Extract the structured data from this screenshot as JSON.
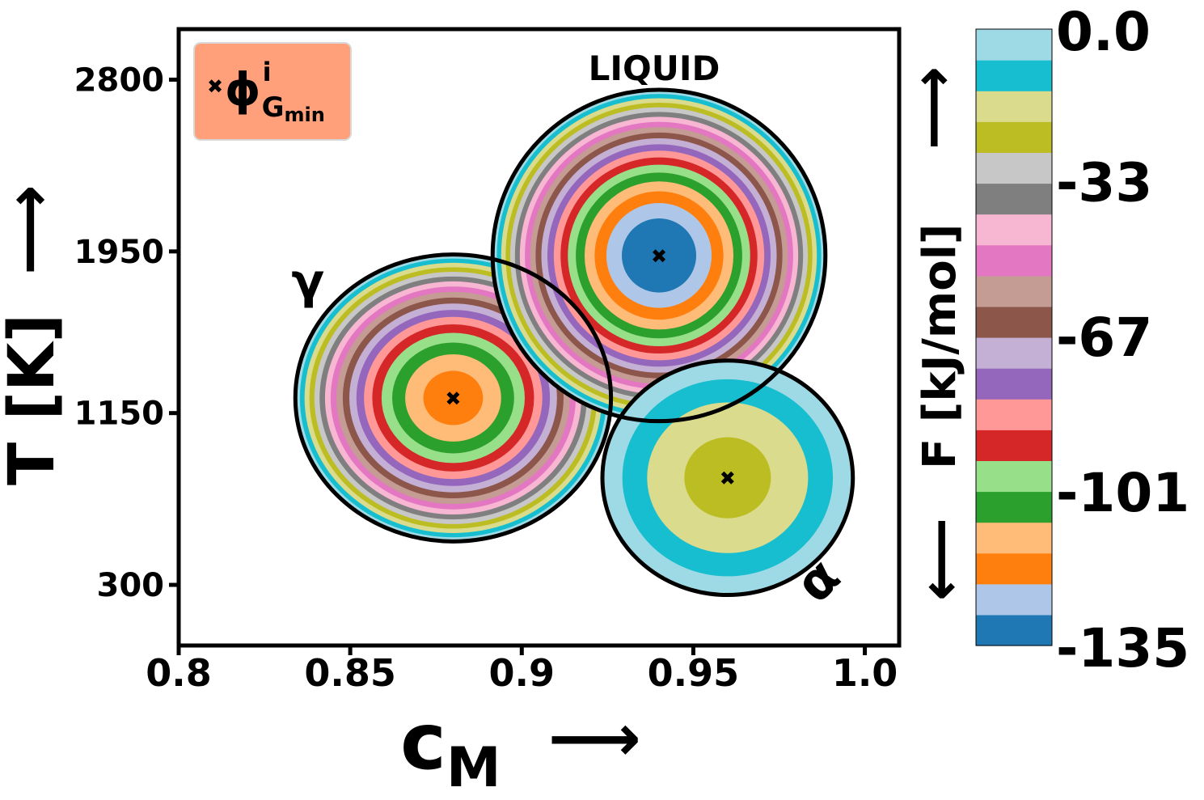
{
  "chart_data": {
    "type": "contour",
    "xlabel": "c",
    "xlabel_sub": "M",
    "xlabel_arrow": "⟶",
    "ylabel": "T [K]",
    "ylabel_arrow": "⟶",
    "xlim": [
      0.8,
      1.01
    ],
    "ylim": [
      0,
      3050
    ],
    "xticks": [
      {
        "value": 0.8,
        "label": "0.8"
      },
      {
        "value": 0.85,
        "label": "0.85"
      },
      {
        "value": 0.9,
        "label": "0.9"
      },
      {
        "value": 0.95,
        "label": "0.95"
      },
      {
        "value": 1.0,
        "label": "1.0"
      }
    ],
    "yticks": [
      {
        "value": 300,
        "label": "300"
      },
      {
        "value": 1150,
        "label": "1150"
      },
      {
        "value": 1950,
        "label": "1950"
      },
      {
        "value": 2800,
        "label": "2800"
      }
    ],
    "legend": {
      "position": "top-left",
      "marker": "✖",
      "label_main": "ϕ",
      "label_sup": "i",
      "label_sub": "G",
      "label_subsub": "min",
      "background": "#ffa07a"
    },
    "phases": [
      {
        "name": "γ",
        "label_position": "upper-left",
        "center": {
          "x": 0.88,
          "y": 1225
        },
        "radius_x": 0.046,
        "radius_y": 710,
        "min_F": -119,
        "max_F": 0
      },
      {
        "name": "LIQUID",
        "label_position": "top",
        "center": {
          "x": 0.94,
          "y": 1930
        },
        "radius_x": 0.0485,
        "radius_y": 820,
        "min_F": -135,
        "max_F": 0
      },
      {
        "name": "α",
        "label_position": "lower-right",
        "center": {
          "x": 0.96,
          "y": 830
        },
        "radius_x": 0.0365,
        "radius_y": 580,
        "min_F": -23,
        "max_F": 0
      }
    ],
    "colorbar": {
      "label": "F [kJ/mol]",
      "label_arrow_up": "⟶",
      "label_arrow_down": "⟶",
      "min": -135,
      "max": 0,
      "ticks": [
        {
          "value": 0,
          "label": "0.0"
        },
        {
          "value": -33,
          "label": "-33"
        },
        {
          "value": -67,
          "label": "-67"
        },
        {
          "value": -101,
          "label": "-101"
        },
        {
          "value": -135,
          "label": "-135"
        }
      ],
      "colors": [
        "#1f77b4",
        "#aec7e8",
        "#ff7f0e",
        "#ffbb78",
        "#2ca02c",
        "#98df8a",
        "#d62728",
        "#ff9896",
        "#9467bd",
        "#c5b0d5",
        "#8c564b",
        "#c49c94",
        "#e377c2",
        "#f7b6d2",
        "#7f7f7f",
        "#c7c7c7",
        "#bcbd22",
        "#dbdb8d",
        "#17becf",
        "#9edae5"
      ]
    }
  }
}
